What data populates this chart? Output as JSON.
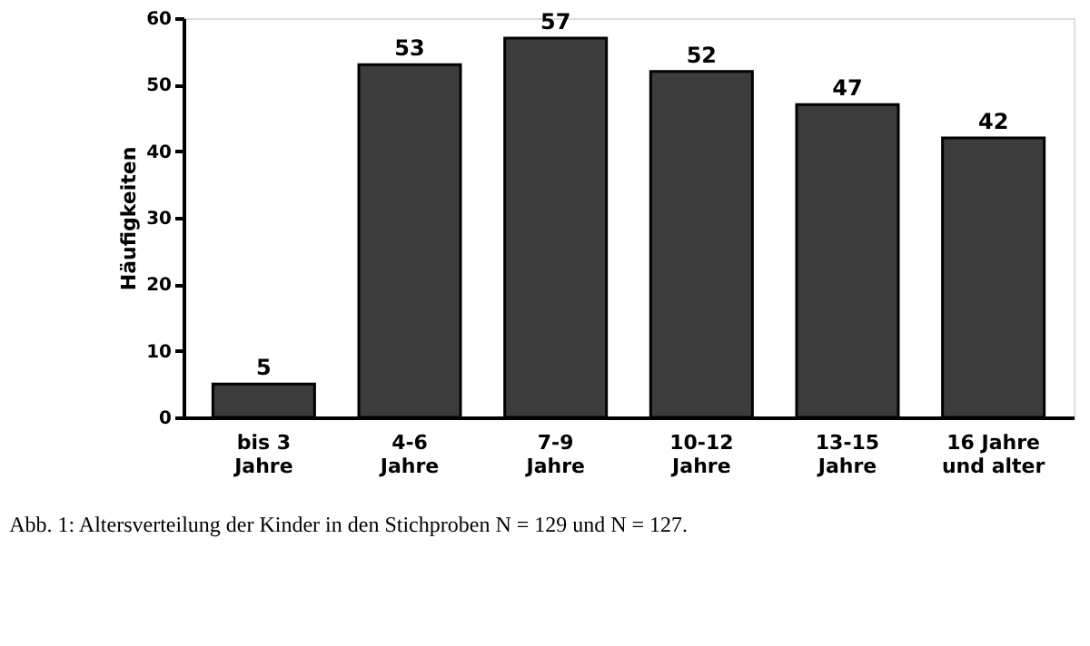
{
  "chart_data": {
    "type": "bar",
    "categories": [
      "bis 3\nJahre",
      "4-6\nJahre",
      "7-9\nJahre",
      "10-12\nJahre",
      "13-15\nJahre",
      "16 Jahre\nund alter"
    ],
    "values": [
      5,
      53,
      57,
      52,
      47,
      42
    ],
    "color": "#3c3c3c",
    "ylabel": "Häufigkeiten",
    "ylim": [
      0,
      60
    ],
    "yticks": [
      0,
      10,
      20,
      30,
      40,
      50,
      60
    ],
    "grid": false,
    "data_labels": true,
    "annotations": [
      "Abb. 1:  Altersverteilung der Kinder in den Stichproben N = 129 und N = 127."
    ]
  }
}
